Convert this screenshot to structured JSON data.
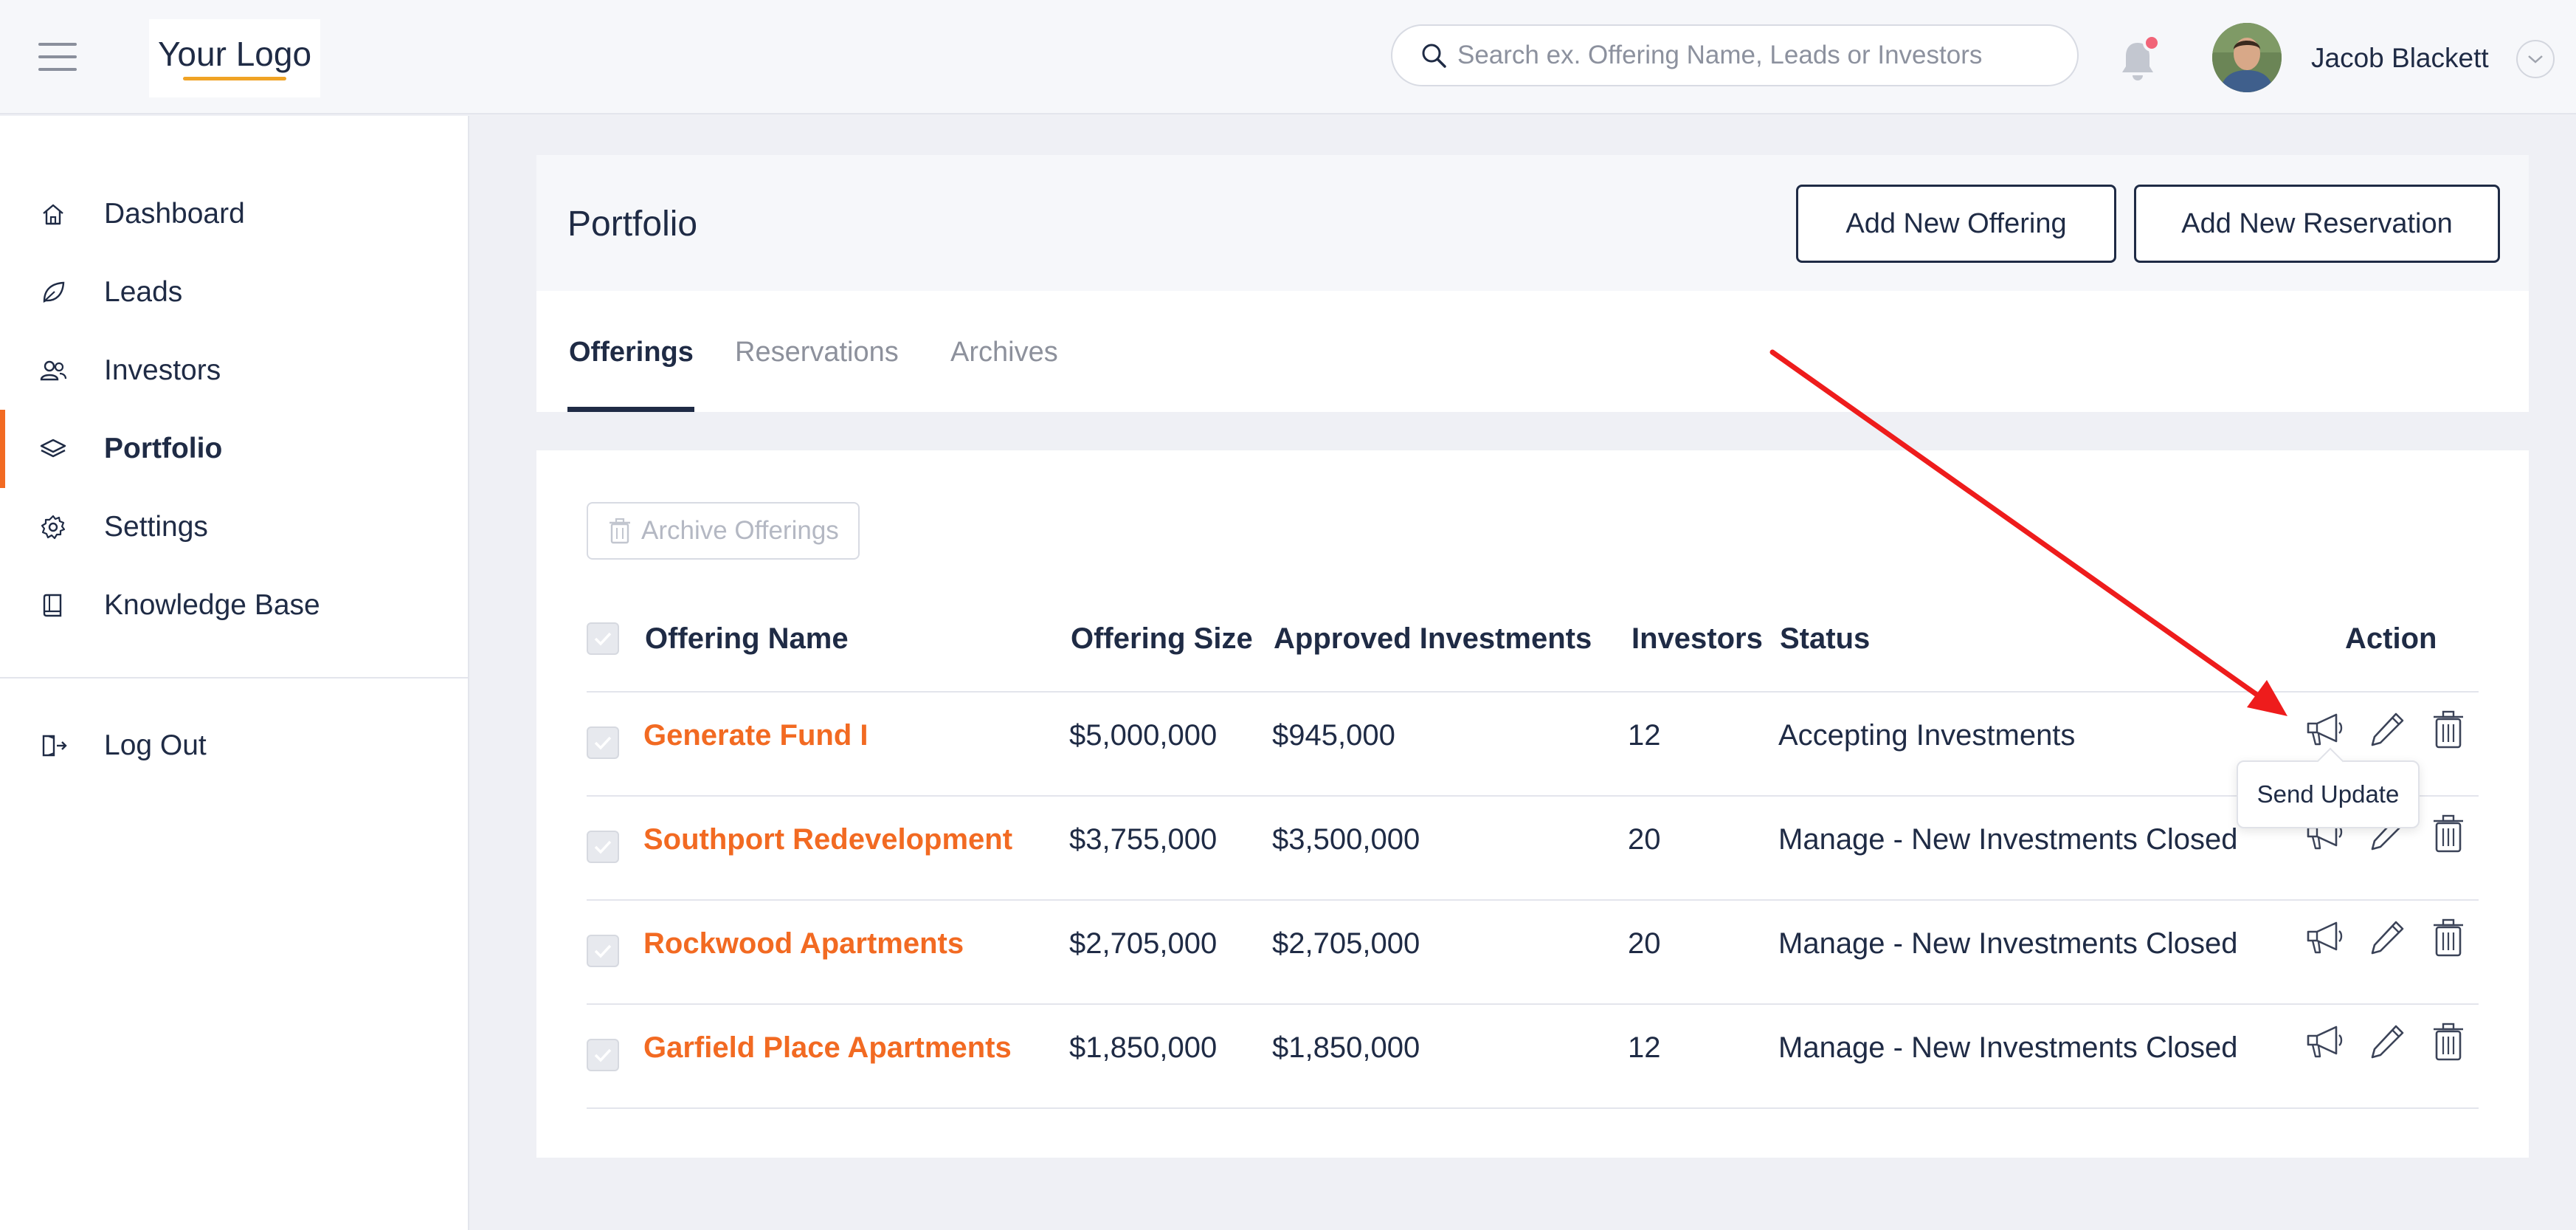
{
  "app": {
    "logo_text": "Your Logo",
    "search_placeholder": "Search ex. Offering Name, Leads or Investors",
    "user_name": "Jacob Blackett"
  },
  "sidebar": {
    "items": [
      {
        "label": "Dashboard",
        "icon": "home-icon"
      },
      {
        "label": "Leads",
        "icon": "leaf-icon"
      },
      {
        "label": "Investors",
        "icon": "users-icon"
      },
      {
        "label": "Portfolio",
        "icon": "layers-icon",
        "active": true
      },
      {
        "label": "Settings",
        "icon": "gear-icon"
      },
      {
        "label": "Knowledge Base",
        "icon": "book-icon"
      }
    ],
    "logout_label": "Log Out"
  },
  "page": {
    "title": "Portfolio",
    "add_offering_label": "Add New Offering",
    "add_reservation_label": "Add New Reservation",
    "tabs": [
      {
        "label": "Offerings",
        "active": true
      },
      {
        "label": "Reservations"
      },
      {
        "label": "Archives"
      }
    ],
    "archive_button_label": "Archive Offerings"
  },
  "table": {
    "columns": {
      "name": "Offering Name",
      "size": "Offering Size",
      "approved": "Approved Investments",
      "investors": "Investors",
      "status": "Status",
      "action": "Action"
    },
    "rows": [
      {
        "name": "Generate Fund I",
        "size": "$5,000,000",
        "approved": "$945,000",
        "investors": "12",
        "status": "Accepting Investments"
      },
      {
        "name": "Southport Redevelopment",
        "size": "$3,755,000",
        "approved": "$3,500,000",
        "investors": "20",
        "status": "Manage - New Investments Closed"
      },
      {
        "name": "Rockwood Apartments",
        "size": "$2,705,000",
        "approved": "$2,705,000",
        "investors": "20",
        "status": "Manage - New Investments Closed"
      },
      {
        "name": "Garfield Place Apartments",
        "size": "$1,850,000",
        "approved": "$1,850,000",
        "investors": "12",
        "status": "Manage - New Investments Closed"
      }
    ],
    "tooltip": "Send Update"
  },
  "colors": {
    "accent": "#f26a22",
    "primary": "#1f2b45",
    "annotation_arrow": "#ee1c1c",
    "notification_dot": "#f16478"
  }
}
